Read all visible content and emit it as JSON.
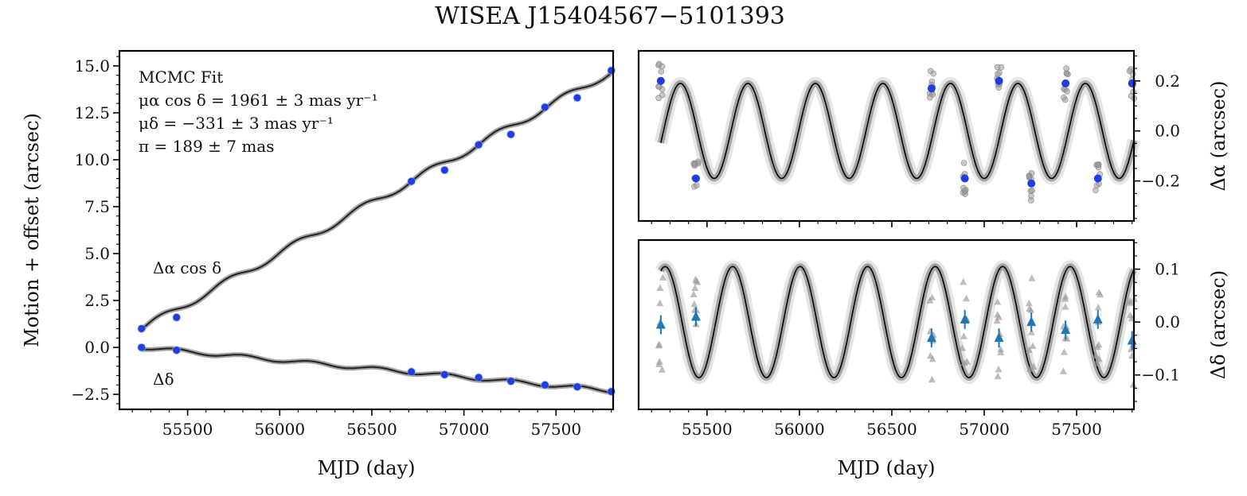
{
  "figure_title": "WISEA J15404567−5101393",
  "chart_data": [
    {
      "type": "line",
      "panel": "left",
      "xlabel": "MJD (day)",
      "ylabel": "Motion + offset (arcsec)",
      "xlim": [
        5130,
        57810
      ],
      "ylim": [
        -3.3,
        15.8
      ],
      "xticks": [
        55500,
        56000,
        56500,
        57000,
        57500
      ],
      "xtick_labels": [
        "55500",
        "56000",
        "56500",
        "57000",
        "57500"
      ],
      "yticks": [
        -2.5,
        0.0,
        2.5,
        5.0,
        7.5,
        10.0,
        12.5,
        15.0
      ],
      "ytick_labels": [
        "−2.5",
        "0.0",
        "2.5",
        "5.0",
        "7.5",
        "10.0",
        "12.5",
        "15.0"
      ],
      "annotation_lines": [
        "MCMC Fit",
        "μα cos δ = 1961 ± 3 mas yr⁻¹",
        "μδ = −331 ± 3 mas yr⁻¹",
        "π = 189 ± 7 mas"
      ],
      "series_labels": [
        "Δα cos δ",
        "Δδ"
      ],
      "model": {
        "pm_ra_mas_yr": 1961,
        "pm_dec_mas_yr": -331,
        "parallax_mas": 189,
        "ra_offset_arcsec": 1.0,
        "ra_epoch_mjd": 55250
      },
      "series": [
        {
          "name": "Δα cos δ",
          "x": [
            55250,
            55440,
            56715,
            56895,
            57080,
            57255,
            57440,
            57615,
            57800
          ],
          "values": [
            1.0,
            1.6,
            8.85,
            9.45,
            10.8,
            11.35,
            12.8,
            13.3,
            14.75
          ]
        },
        {
          "name": "Δδ",
          "x": [
            55250,
            55440,
            56715,
            56895,
            57080,
            57255,
            57440,
            57615,
            57800
          ],
          "values": [
            0.0,
            -0.15,
            -1.3,
            -1.45,
            -1.6,
            -1.8,
            -2.0,
            -2.1,
            -2.35
          ]
        }
      ],
      "colors": {
        "points": "#1f3de0",
        "model": "#333333"
      }
    },
    {
      "type": "scatter",
      "panel": "right-top",
      "ylabel": "Δα (arcsec)",
      "xlim": [
        5130,
        57810
      ],
      "ylim": [
        -0.36,
        0.32
      ],
      "xticks": [
        55500,
        56000,
        56500,
        57000,
        57500
      ],
      "yticks": [
        -0.2,
        0.0,
        0.2
      ],
      "ytick_labels": [
        "−0.2",
        "0.0",
        "0.2"
      ],
      "model_amplitude_arcsec": 0.19,
      "x": [
        55250,
        55440,
        56715,
        56895,
        57080,
        57255,
        57440,
        57615,
        57800
      ],
      "values": [
        0.2,
        -0.19,
        0.17,
        -0.19,
        0.2,
        -0.21,
        0.19,
        -0.19,
        0.19
      ],
      "colors": {
        "points": "#1f3de0",
        "individual": "#9a9a9a",
        "model": "#000000"
      }
    },
    {
      "type": "scatter",
      "panel": "right-bottom",
      "xlabel": "MJD (day)",
      "ylabel": "Δδ (arcsec)",
      "xlim": [
        5130,
        57810
      ],
      "ylim": [
        -0.165,
        0.155
      ],
      "xticks": [
        55500,
        56000,
        56500,
        57000,
        57500
      ],
      "xtick_labels": [
        "55500",
        "56000",
        "56500",
        "57000",
        "57500"
      ],
      "yticks": [
        -0.1,
        0.0,
        0.1
      ],
      "ytick_labels": [
        "−0.1",
        "0.0",
        "0.1"
      ],
      "model_amplitude_arcsec": 0.105,
      "x": [
        55250,
        55440,
        56715,
        56895,
        57080,
        57255,
        57440,
        57615,
        57800
      ],
      "values": [
        -0.005,
        0.01,
        -0.03,
        0.005,
        -0.03,
        0.0,
        -0.015,
        0.005,
        -0.035
      ],
      "colors": {
        "points": "#1f77b4",
        "individual": "#9a9a9a",
        "model": "#000000"
      }
    }
  ]
}
